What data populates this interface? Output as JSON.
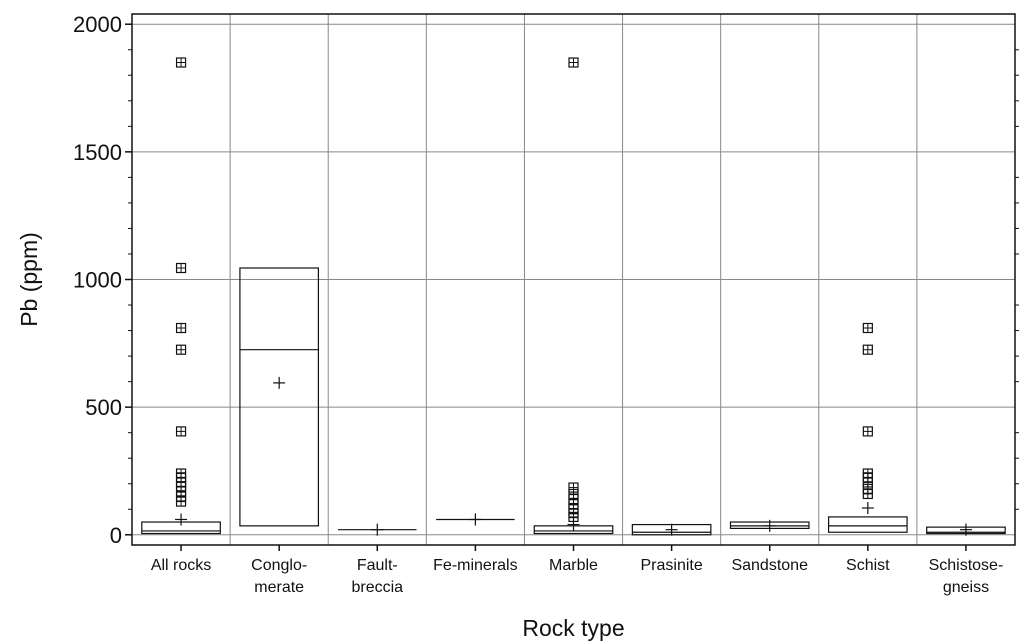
{
  "chart_data": {
    "type": "box",
    "title": "",
    "xlabel": "Rock type",
    "ylabel": "Pb (ppm)",
    "ylim": [
      -40,
      2040
    ],
    "yticks": [
      0,
      500,
      1000,
      1500,
      2000
    ],
    "grid": true,
    "categories": [
      {
        "lines": [
          "All rocks"
        ]
      },
      {
        "lines": [
          "Conglo-",
          "merate"
        ]
      },
      {
        "lines": [
          "Fault-",
          "breccia"
        ]
      },
      {
        "lines": [
          "Fe-minerals"
        ]
      },
      {
        "lines": [
          "Marble"
        ]
      },
      {
        "lines": [
          "Prasinite"
        ]
      },
      {
        "lines": [
          "Sandstone"
        ]
      },
      {
        "lines": [
          "Schist"
        ]
      },
      {
        "lines": [
          "Schistose-",
          "gneiss"
        ]
      }
    ],
    "boxes": [
      {
        "q1": 5,
        "median": 15,
        "q3": 50,
        "mean": 60,
        "outliers": [
          1850,
          1045,
          810,
          725,
          405,
          240,
          225,
          205,
          190,
          170,
          150,
          130
        ]
      },
      {
        "q1": 35,
        "median": 725,
        "q3": 1045,
        "mean": 595,
        "outliers": []
      },
      {
        "q1": 20,
        "median": 20,
        "q3": 20,
        "mean": 20,
        "outliers": []
      },
      {
        "q1": 60,
        "median": 60,
        "q3": 60,
        "mean": 60,
        "outliers": []
      },
      {
        "q1": 5,
        "median": 15,
        "q3": 35,
        "mean": 40,
        "outliers": [
          1850,
          185,
          160,
          140,
          120,
          100,
          85,
          70
        ]
      },
      {
        "q1": 0,
        "median": 10,
        "q3": 40,
        "mean": 20,
        "outliers": []
      },
      {
        "q1": 25,
        "median": 35,
        "q3": 50,
        "mean": 35,
        "outliers": []
      },
      {
        "q1": 10,
        "median": 35,
        "q3": 70,
        "mean": 105,
        "outliers": [
          810,
          725,
          405,
          240,
          225,
          205,
          180,
          160
        ]
      },
      {
        "q1": 5,
        "median": 10,
        "q3": 30,
        "mean": 20,
        "outliers": []
      }
    ]
  }
}
